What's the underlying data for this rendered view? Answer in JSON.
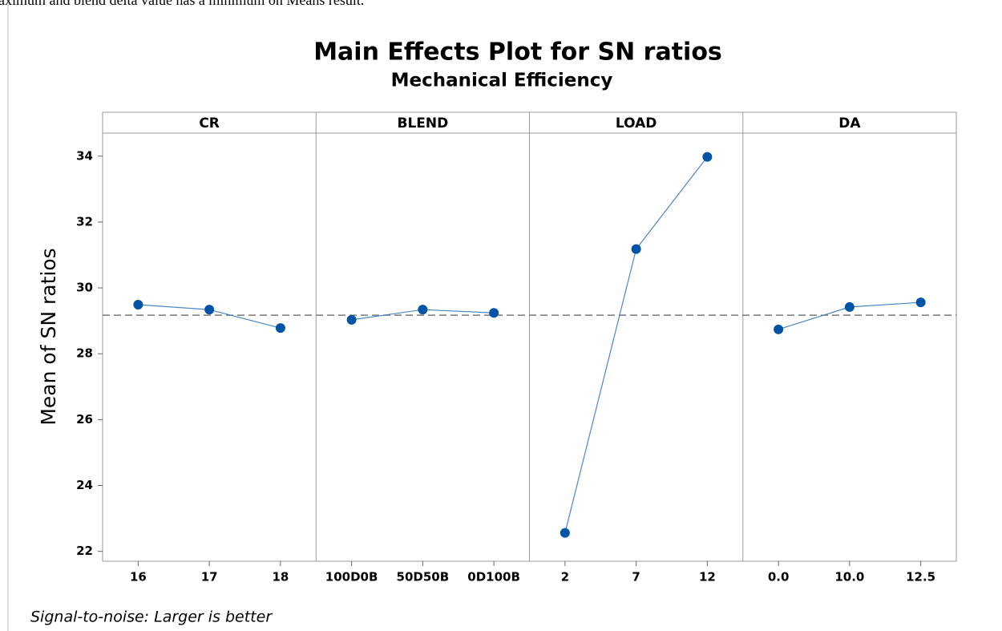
{
  "context_text": "aximum and blend delta value has a minimum on Means result.",
  "chart_data": {
    "type": "line",
    "title": "Main Effects Plot for SN ratios",
    "subtitle": "Mechanical Efficiency",
    "ylabel": "Mean of SN ratios",
    "footnote": "Signal-to-noise: Larger is better",
    "ylim": [
      21.7,
      34.7
    ],
    "yticks": [
      22,
      24,
      26,
      28,
      30,
      32,
      34
    ],
    "reference_line": 29.17,
    "color": "#0054a6",
    "line_color": "#4a86c6",
    "panels": [
      {
        "name": "CR",
        "categories": [
          "16",
          "17",
          "18"
        ],
        "values": [
          29.49,
          29.34,
          28.78
        ]
      },
      {
        "name": "BLEND",
        "categories": [
          "100D0B",
          "50D50B",
          "0D100B"
        ],
        "values": [
          29.03,
          29.34,
          29.24
        ]
      },
      {
        "name": "LOAD",
        "categories": [
          "2",
          "7",
          "12"
        ],
        "values": [
          22.56,
          31.18,
          33.98
        ]
      },
      {
        "name": "DA",
        "categories": [
          "0.0",
          "10.0",
          "12.5"
        ],
        "values": [
          28.74,
          29.42,
          29.56
        ]
      }
    ]
  }
}
